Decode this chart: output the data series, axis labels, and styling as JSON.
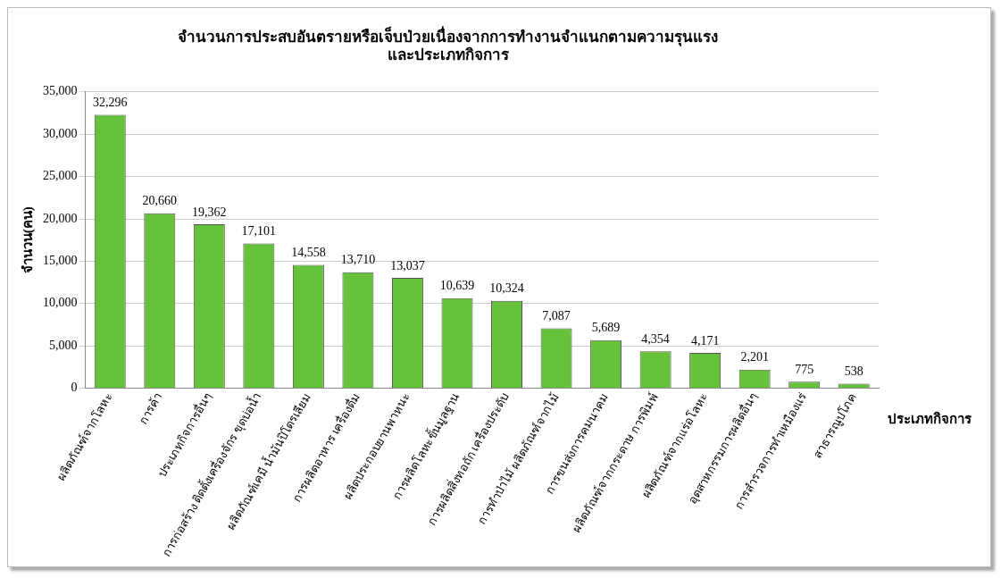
{
  "chart_data": {
    "type": "bar",
    "title": [
      "จำนวนการประสบอันตรายหรือเจ็บป่วยเนื่องจากการทำงานจำแนกตามความรุนแรง",
      "และประเภทกิจการ"
    ],
    "xlabel": "ประเภทกิจการ",
    "ylabel": "จำนวน(คน)",
    "categories": [
      "ผลิตภัณฑ์จากโลหะ",
      "การค้า",
      "ประเภทกิจการอื่นๆ",
      "การก่อสร้าง ติดตั้งเครื่องจักร ขุดบ่อน้ำ",
      "ผลิตภัณฑ์เคมี น้ำมันปิโตรเลียม",
      "การผลิตอาหาร เครื่องดื่ม",
      "ผลิตประกอบยานพาหนะ",
      "การผลิตโลหะขั้นมูลฐาน",
      "การผลิตสิ่งทอถัก เครื่องประดับ",
      "การทำป่าไม้ ผลิตภัณฑ์จากไม้",
      "การขนส่งการคมนาคม",
      "ผลิตภัณฑ์จากกระดาษ การพิมพ์",
      "ผลิตภัณฑ์จากแร่อโลหะ",
      "อุตสาหกรรมการผลิตอื่นๆ",
      "การสำรวจการทำเหมืองแร่",
      "สาธารณูปโภค"
    ],
    "values": [
      32296,
      20660,
      19362,
      17101,
      14558,
      13710,
      13037,
      10639,
      10324,
      7087,
      5689,
      4354,
      4171,
      2201,
      775,
      538
    ],
    "color": "#66c23a",
    "ylim": [
      0,
      35000
    ],
    "yticks": [
      {
        "value": 0,
        "label": "0"
      },
      {
        "value": 5000,
        "label": "5,000"
      },
      {
        "value": 10000,
        "label": "10,000"
      },
      {
        "value": 15000,
        "label": "15,000"
      },
      {
        "value": 20000,
        "label": "20,000"
      },
      {
        "value": 25000,
        "label": "25,000"
      },
      {
        "value": 30000,
        "label": "30,000"
      },
      {
        "value": 35000,
        "label": "35,000"
      }
    ],
    "value_labels": [
      "32,296",
      "20,660",
      "19,362",
      "17,101",
      "14,558",
      "13,710",
      "13,037",
      "10,639",
      "10,324",
      "7,087",
      "5,689",
      "4,354",
      "4,171",
      "2,201",
      "775",
      "538"
    ],
    "grid": "y",
    "legend": false
  }
}
